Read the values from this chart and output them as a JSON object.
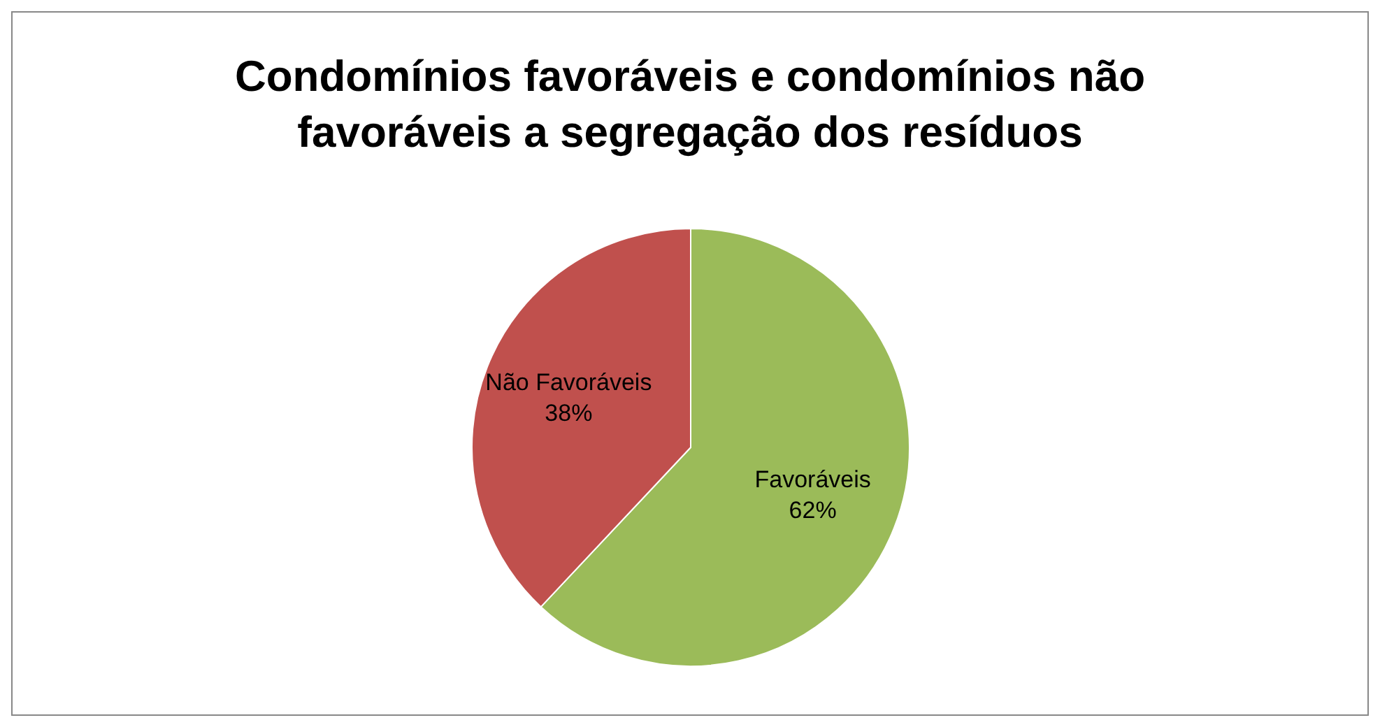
{
  "chart_data": {
    "type": "pie",
    "title": "Condomínios favoráveis e condomínios não favoráveis a segregação dos resíduos",
    "categories": [
      "Favoráveis",
      "Não Favoráveis"
    ],
    "values": [
      62,
      38
    ],
    "value_labels": [
      "62%",
      "38%"
    ],
    "colors": [
      "#9bbb59",
      "#c0504d"
    ],
    "legend": false
  }
}
